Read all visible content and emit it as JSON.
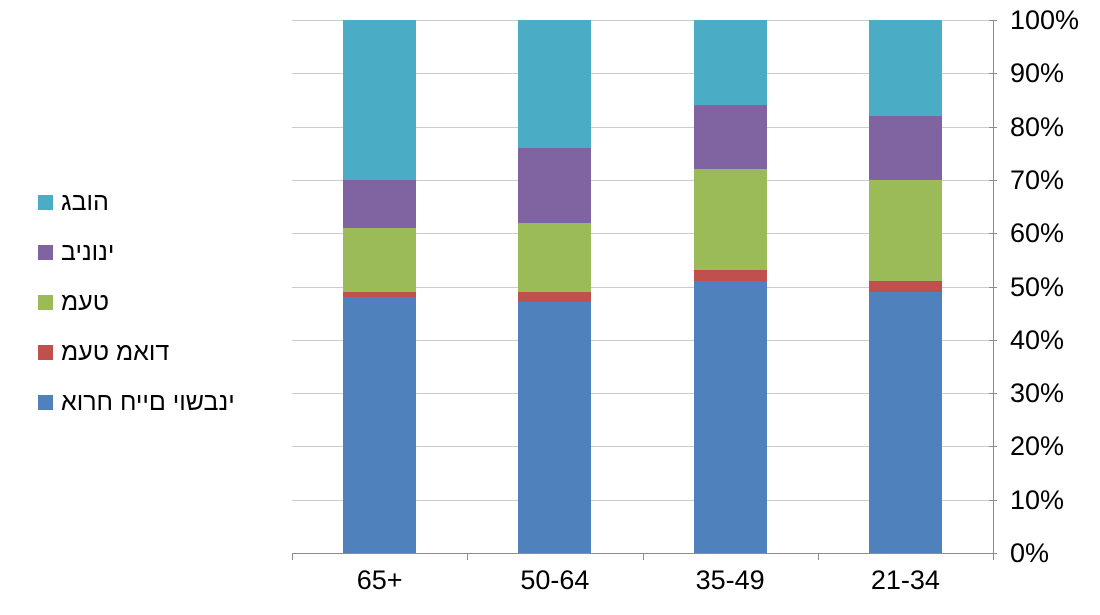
{
  "chart_data": {
    "type": "bar",
    "subtype": "stacked-100-percent",
    "orientation": "vertical",
    "title": "",
    "xlabel": "",
    "ylabel": "",
    "categories": [
      "65+",
      "50-64",
      "35-49",
      "21-34"
    ],
    "series": [
      {
        "key": "sedentary-lifestyle",
        "name": "אורח חיים יושבני",
        "color": "#4F81BD",
        "values": [
          48,
          47,
          51,
          49
        ]
      },
      {
        "key": "very-little",
        "name": "מעט מאוד",
        "color": "#C0504D",
        "values": [
          1,
          2,
          2,
          2
        ]
      },
      {
        "key": "little",
        "name": "מעט",
        "color": "#9BBB59",
        "values": [
          12,
          13,
          19,
          19
        ]
      },
      {
        "key": "medium",
        "name": "בינוני",
        "color": "#8064A2",
        "values": [
          9,
          14,
          12,
          12
        ]
      },
      {
        "key": "high",
        "name": "גבוה",
        "color": "#4BACC6",
        "values": [
          30,
          24,
          16,
          18
        ]
      }
    ],
    "stack_order": "first-series-at-bottom",
    "y_axis": {
      "side": "right",
      "min": 0,
      "max": 100,
      "tick_step": 10,
      "tick_labels": [
        "100%",
        "90%",
        "80%",
        "70%",
        "60%",
        "50%",
        "40%",
        "30%",
        "20%",
        "10%",
        "0%"
      ]
    },
    "legend": {
      "position": "left",
      "order_top_to_bottom": [
        "high",
        "medium",
        "little",
        "very-little",
        "sedentary-lifestyle"
      ]
    },
    "grid": true,
    "colors": {
      "background": "#FFFFFF",
      "gridline": "#CCCCCC",
      "axis": "#8C8C8C",
      "text": "#000000"
    }
  }
}
